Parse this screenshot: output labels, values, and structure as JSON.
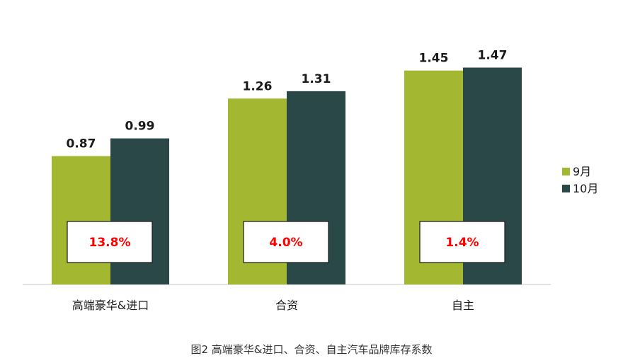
{
  "chart_data": {
    "type": "bar",
    "categories": [
      "高端豪华&进口",
      "合资",
      "自主"
    ],
    "series": [
      {
        "name": "9月",
        "values": [
          0.87,
          1.26,
          1.45
        ],
        "color": "#a3b830"
      },
      {
        "name": "10月",
        "values": [
          0.99,
          1.31,
          1.47
        ],
        "color": "#2a4848"
      }
    ],
    "value_labels": [
      [
        "0.87",
        "1.26",
        "1.45"
      ],
      [
        "0.99",
        "1.31",
        "1.47"
      ]
    ],
    "change_labels": [
      "13.8%",
      "4.0%",
      "1.4%"
    ],
    "change_label_color": "#ff0000",
    "ylim": [
      0,
      1.6
    ],
    "grid": false,
    "legend_position": "right",
    "caption": "图2 高端豪华&进口、合资、自主汽车品牌库存系数"
  }
}
